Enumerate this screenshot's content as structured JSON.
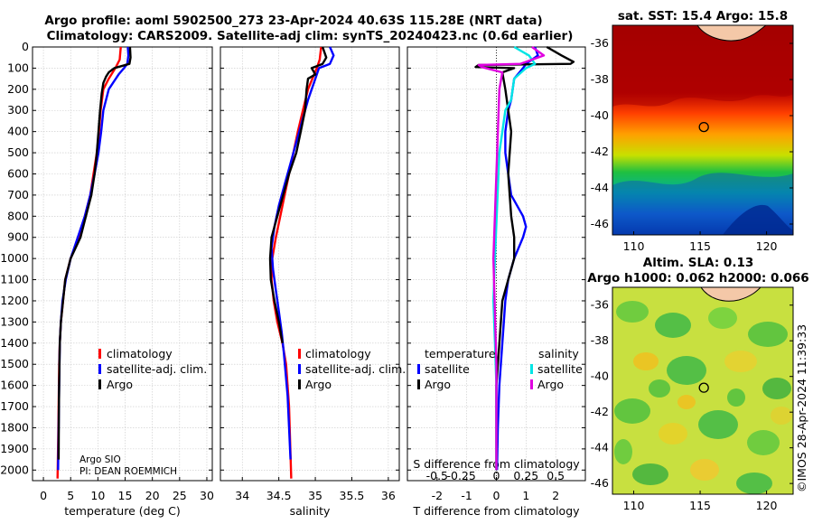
{
  "title_line1": "Argo profile: aoml 5902500_273 23-Apr-2024 40.63S 115.28E (NRT data)",
  "title_line2": "Climatology: CARS2009. Satellite-adj clim: synTS_20240423.nc (0.6d earlier)",
  "pi": {
    "line1": "Argo SIO",
    "line2": "PI: DEAN ROEMMICH"
  },
  "credit": "©IMOS 28-Apr-2024 11:39:33",
  "colors": {
    "climatology": "#ff0000",
    "satellite": "#0000ff",
    "argo": "#000000",
    "sal_satellite": "#00e5e5",
    "sal_argo": "#e000e0"
  },
  "legends": {
    "climatology": "climatology",
    "satellite_adj": "satellite-adj. clim.",
    "argo": "Argo",
    "temperature": "temperature",
    "salinity": "salinity",
    "satellite": "satellite",
    "argo_short": "Argo"
  },
  "chart_data": [
    {
      "type": "line",
      "id": "temperature",
      "xlabel": "temperature (deg C)",
      "xlim": [
        -2,
        31
      ],
      "ylim": [
        0,
        2050
      ],
      "xticks": [
        0,
        5,
        10,
        15,
        20,
        25,
        30
      ],
      "yticks": [
        0,
        100,
        200,
        300,
        400,
        500,
        600,
        700,
        800,
        900,
        1000,
        1100,
        1200,
        1300,
        1400,
        1500,
        1600,
        1700,
        1800,
        1900,
        2000
      ],
      "grid": true,
      "series": [
        {
          "name": "climatology",
          "color": "#ff0000",
          "x": [
            14.2,
            14.0,
            13.2,
            12.0,
            11.0,
            10.5,
            10.2,
            9.8,
            9.2,
            8.6,
            7.6,
            6.5,
            5.0,
            4.0,
            3.6,
            3.2,
            3.0,
            2.9,
            2.85,
            2.75,
            2.6
          ],
          "y": [
            0,
            60,
            100,
            150,
            200,
            300,
            400,
            500,
            600,
            700,
            800,
            900,
            1000,
            1100,
            1200,
            1300,
            1400,
            1500,
            1600,
            1800,
            2040
          ]
        },
        {
          "name": "satellite-adj. clim.",
          "color": "#0000ff",
          "x": [
            15.5,
            15.6,
            15.4,
            14.8,
            13.8,
            12.0,
            11.0,
            10.6,
            10.1,
            9.4,
            8.6,
            7.6,
            6.3,
            5.0,
            4.1,
            3.5,
            3.2,
            3.0,
            2.9,
            2.8,
            2.7
          ],
          "y": [
            0,
            40,
            80,
            100,
            130,
            200,
            300,
            400,
            500,
            600,
            700,
            800,
            900,
            1000,
            1100,
            1200,
            1300,
            1400,
            1600,
            1800,
            2000
          ]
        },
        {
          "name": "Argo",
          "color": "#000000",
          "x": [
            15.9,
            16.0,
            15.8,
            13.0,
            12.0,
            11.5,
            11.0,
            10.7,
            10.4,
            10.1,
            9.8,
            9.4,
            8.8,
            7.8,
            6.8,
            5.0,
            4.0,
            3.6,
            3.2,
            3.0,
            2.95,
            2.85,
            2.8
          ],
          "y": [
            0,
            50,
            80,
            100,
            120,
            140,
            170,
            220,
            300,
            400,
            500,
            600,
            700,
            800,
            900,
            1000,
            1100,
            1200,
            1300,
            1400,
            1500,
            1700,
            1950
          ]
        }
      ]
    },
    {
      "type": "line",
      "id": "salinity",
      "xlabel": "salinity",
      "xlim": [
        33.7,
        36.15
      ],
      "ylim": [
        0,
        2050
      ],
      "xticks": [
        34,
        34.5,
        35,
        35.5,
        36
      ],
      "grid": true,
      "series": [
        {
          "name": "climatology",
          "color": "#ff0000",
          "x": [
            35.08,
            35.06,
            35.02,
            34.96,
            34.9,
            34.83,
            34.76,
            34.7,
            34.64,
            34.58,
            34.52,
            34.46,
            34.41,
            34.4,
            34.43,
            34.48,
            34.55,
            34.6,
            34.64,
            34.67
          ],
          "y": [
            0,
            60,
            100,
            150,
            200,
            300,
            400,
            500,
            600,
            700,
            800,
            900,
            1000,
            1100,
            1200,
            1300,
            1400,
            1500,
            1700,
            2040
          ]
        },
        {
          "name": "satellite-adj. clim.",
          "color": "#0000ff",
          "x": [
            35.2,
            35.25,
            35.2,
            35.05,
            35.0,
            34.9,
            34.82,
            34.74,
            34.66,
            34.58,
            34.5,
            34.44,
            34.4,
            34.42,
            34.46,
            34.5,
            34.54,
            34.57,
            34.62,
            34.66
          ],
          "y": [
            0,
            40,
            80,
            100,
            150,
            250,
            350,
            450,
            550,
            650,
            750,
            850,
            950,
            1050,
            1150,
            1250,
            1350,
            1450,
            1650,
            1950
          ]
        },
        {
          "name": "Argo",
          "color": "#000000",
          "x": [
            35.1,
            35.15,
            35.1,
            34.95,
            35.0,
            34.9,
            34.88,
            34.86,
            34.8,
            34.74,
            34.64,
            34.56,
            34.48,
            34.4,
            34.38,
            34.39,
            34.44,
            34.5,
            34.55
          ],
          "y": [
            0,
            50,
            80,
            100,
            130,
            150,
            200,
            300,
            400,
            500,
            600,
            700,
            800,
            900,
            1000,
            1100,
            1200,
            1300,
            1400
          ]
        }
      ]
    },
    {
      "type": "line",
      "id": "difference",
      "xlabel": "T difference from climatology",
      "xlabel_top": "S difference from climatology",
      "xlim": [
        -3,
        3
      ],
      "ylim": [
        0,
        2050
      ],
      "xticks": [
        -2,
        -1,
        0,
        1,
        2
      ],
      "xticks_top_labels": [
        "-0.5",
        "-0.25",
        "0",
        "0.25",
        "0.5"
      ],
      "grid": true,
      "series": [
        {
          "name": "temperature satellite",
          "color": "#0000ff",
          "x": [
            1.3,
            1.4,
            1.0,
            0.9,
            0.6,
            0.5,
            0.4,
            0.3,
            0.3,
            0.4,
            0.5,
            0.9,
            1.0,
            0.9,
            0.6,
            0.4,
            0.3,
            0.2,
            0.1,
            0.05,
            0.02
          ],
          "y": [
            0,
            40,
            80,
            100,
            150,
            250,
            300,
            400,
            500,
            600,
            700,
            800,
            850,
            900,
            1000,
            1100,
            1200,
            1400,
            1600,
            1800,
            2000
          ]
        },
        {
          "name": "temperature Argo",
          "color": "#000000",
          "x": [
            1.7,
            2.2,
            2.6,
            2.5,
            -0.6,
            -0.7,
            0.6,
            0.2,
            0.3,
            0.5,
            0.4,
            0.5,
            0.6,
            0.6,
            0.4,
            0.2,
            0.1,
            0.0,
            0.0
          ],
          "y": [
            0,
            40,
            70,
            80,
            85,
            95,
            100,
            120,
            200,
            400,
            600,
            800,
            900,
            1000,
            1100,
            1200,
            1400,
            1600,
            2000
          ]
        },
        {
          "name": "salinity satellite",
          "color": "#00e5e5",
          "x": [
            0.6,
            1.1,
            1.3,
            1.0,
            0.6,
            0.5,
            0.3,
            0.2,
            0.1,
            -0.05,
            -0.1,
            -0.05,
            0.0,
            0.0
          ],
          "y": [
            0,
            40,
            80,
            100,
            150,
            250,
            300,
            400,
            500,
            1000,
            1200,
            1400,
            1600,
            2000
          ]
        },
        {
          "name": "salinity Argo",
          "color": "#e000e0",
          "x": [
            1.2,
            1.6,
            0.8,
            -0.6,
            -0.5,
            0.2,
            0.1,
            0.0,
            -0.1,
            0.0,
            0.0
          ],
          "y": [
            0,
            40,
            80,
            85,
            95,
            120,
            200,
            600,
            1000,
            1500,
            2000
          ]
        }
      ]
    },
    {
      "type": "heatmap",
      "id": "sst_map",
      "title": "sat. SST: 15.4 Argo: 15.8",
      "xticks": [
        110,
        115,
        120
      ],
      "yticks": [
        -36,
        -38,
        -40,
        -42,
        -44,
        -46
      ],
      "xlim": [
        108.4,
        122
      ],
      "ylim": [
        -46.6,
        -35
      ],
      "marker": {
        "lon": 115.28,
        "lat": -40.63
      }
    },
    {
      "type": "heatmap",
      "id": "sla_map",
      "title": "Altim. SLA: 0.13",
      "subtitle": "Argo h1000: 0.062 h2000: 0.066",
      "xticks": [
        110,
        115,
        120
      ],
      "yticks": [
        -36,
        -38,
        -40,
        -42,
        -44,
        -46
      ],
      "xlim": [
        108.4,
        122
      ],
      "ylim": [
        -46.6,
        -35
      ],
      "marker": {
        "lon": 115.28,
        "lat": -40.63
      }
    }
  ]
}
